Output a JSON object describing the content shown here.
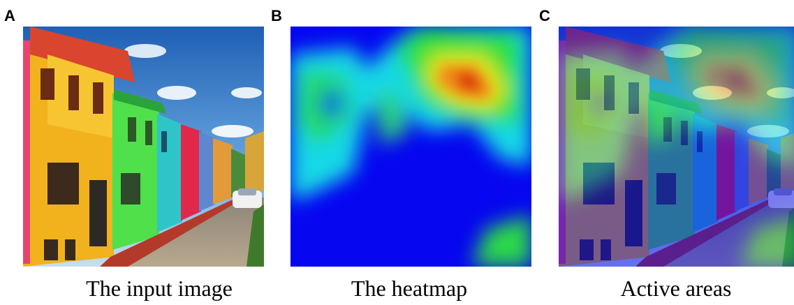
{
  "panels": [
    {
      "letter": "A",
      "caption": "The input image"
    },
    {
      "letter": "B",
      "caption": "The heatmap"
    },
    {
      "letter": "C",
      "caption": "Active areas"
    }
  ]
}
